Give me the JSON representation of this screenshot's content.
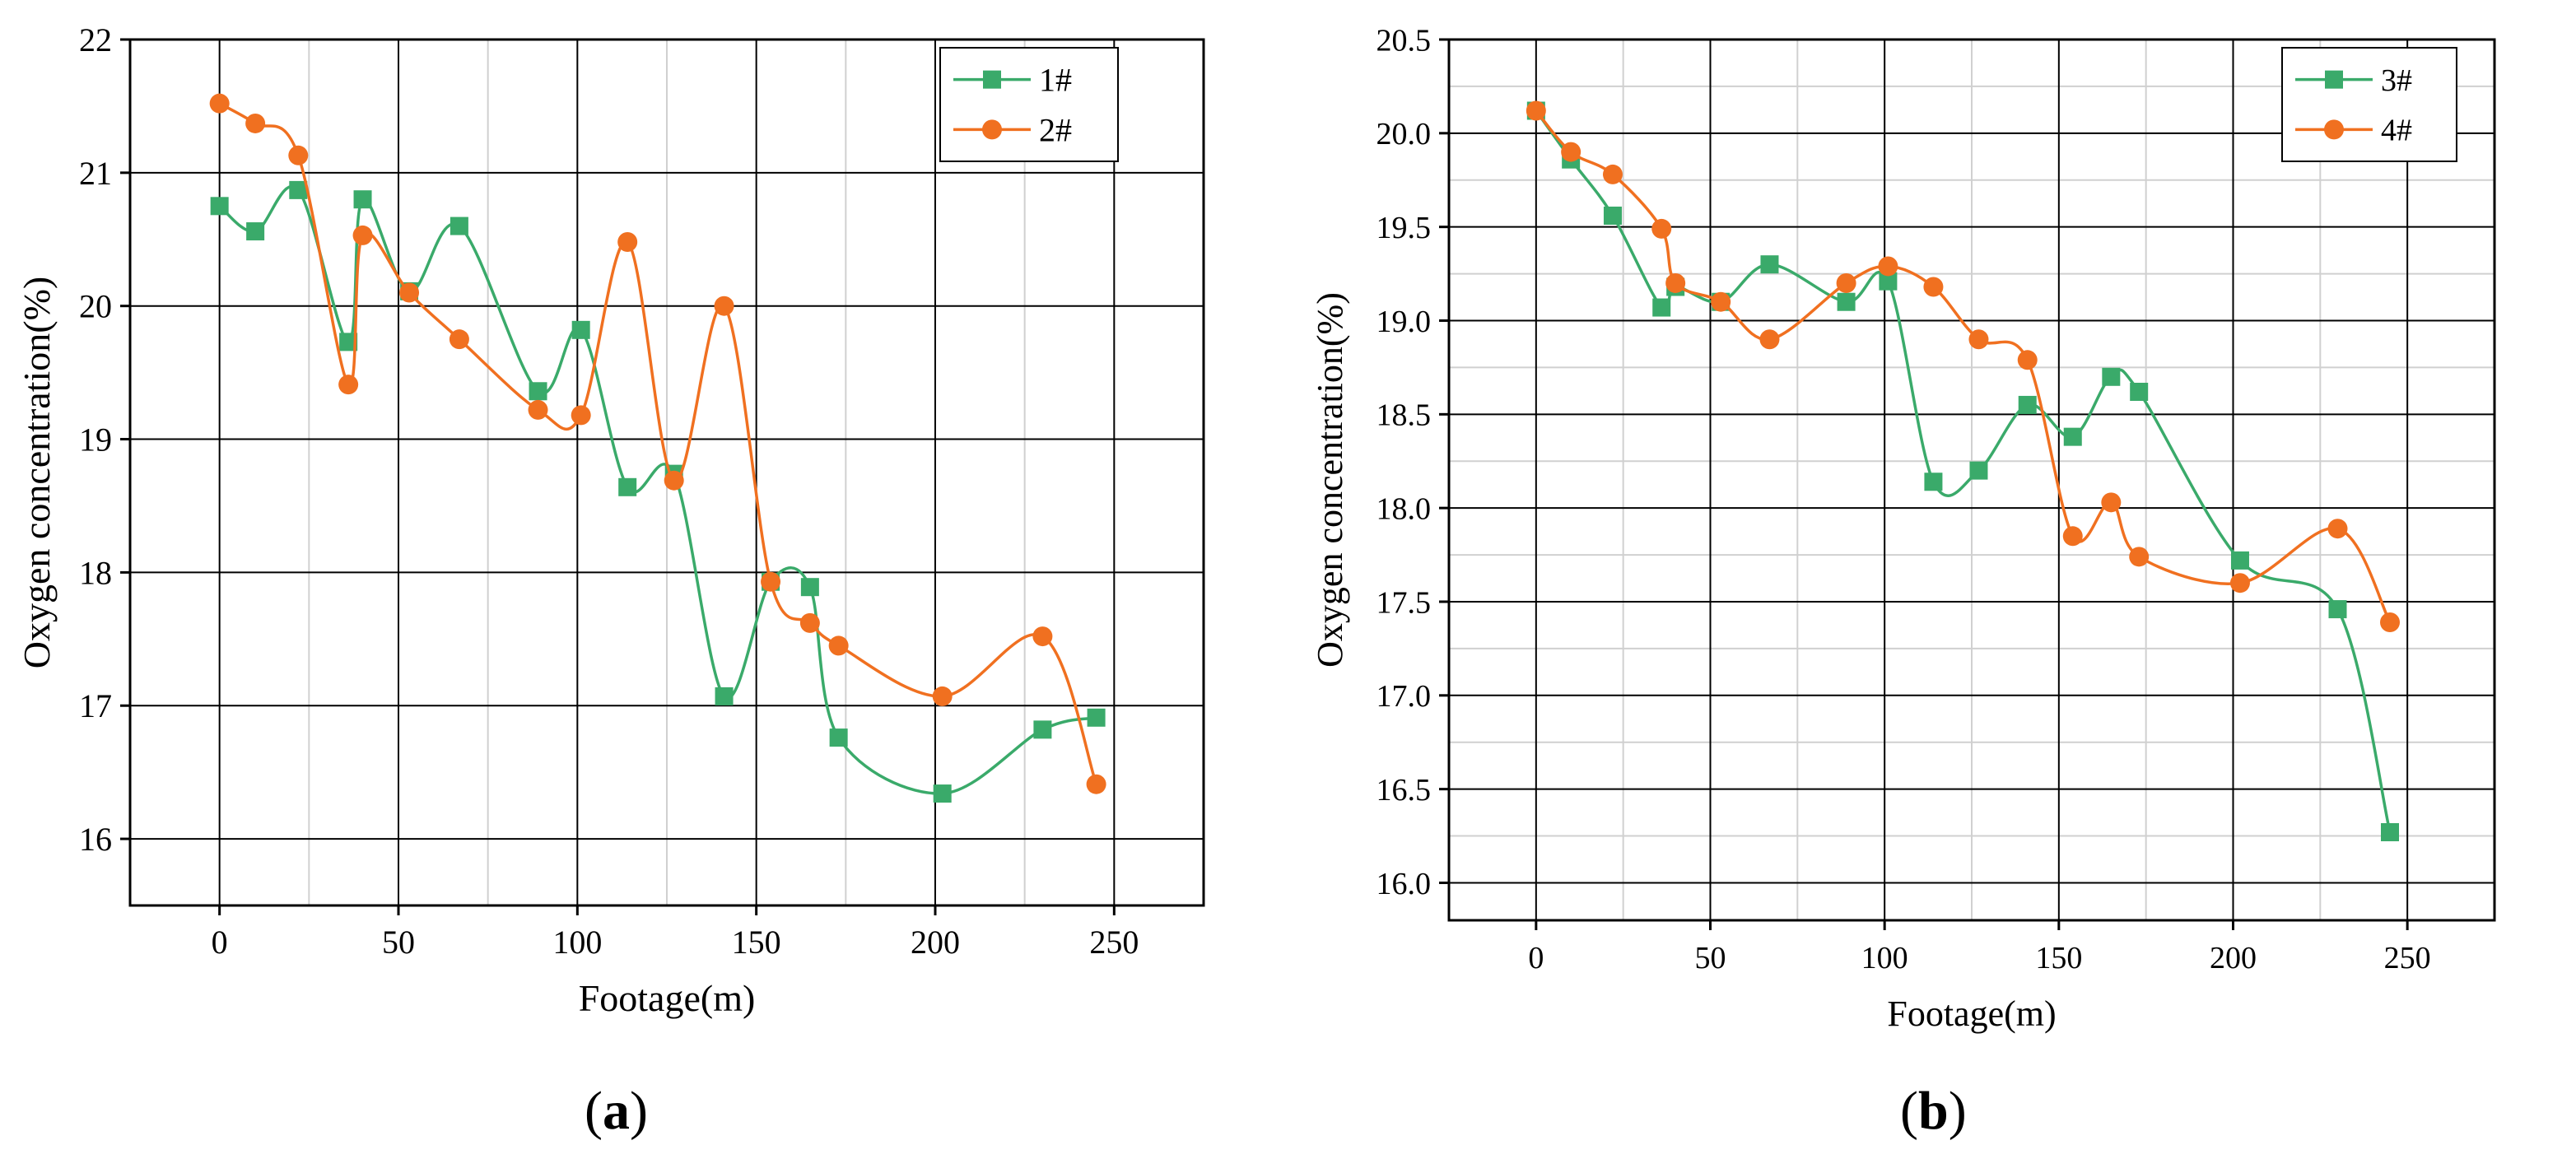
{
  "colors": {
    "green": "#3aaa6a",
    "orange": "#f07020",
    "grid": "#d0d0d0",
    "axis": "#000000"
  },
  "panels": [
    {
      "label_open": "(",
      "label_letter": "a",
      "label_close": ")"
    },
    {
      "label_open": "(",
      "label_letter": "b",
      "label_close": ")"
    }
  ],
  "chart_data": [
    {
      "type": "line",
      "panel": "a",
      "xlabel": "Footage(m)",
      "ylabel": "Oxygen concentration(%)",
      "xlim": [
        -25,
        275
      ],
      "ylim": [
        15.5,
        22
      ],
      "xticks": [
        0,
        50,
        100,
        150,
        200,
        250
      ],
      "yticks": [
        16,
        17,
        18,
        19,
        20,
        21,
        22
      ],
      "xtick_labels": [
        "0",
        "50",
        "100",
        "150",
        "200",
        "250"
      ],
      "ytick_labels": [
        "16",
        "17",
        "18",
        "19",
        "20",
        "21",
        "22"
      ],
      "legend_position": "top-right",
      "series": [
        {
          "name": "1#",
          "color": "#3aaa6a",
          "marker": "square",
          "x": [
            0,
            10,
            22,
            36,
            40,
            53,
            67,
            89,
            101,
            114,
            127,
            141,
            154,
            165,
            173,
            202,
            230,
            245
          ],
          "y": [
            20.75,
            20.56,
            20.87,
            19.73,
            20.8,
            20.11,
            20.6,
            19.36,
            19.82,
            18.64,
            18.74,
            17.07,
            17.93,
            17.89,
            16.76,
            16.34,
            16.82,
            16.91
          ]
        },
        {
          "name": "2#",
          "color": "#f07020",
          "marker": "circle",
          "x": [
            0,
            10,
            22,
            36,
            40,
            53,
            67,
            89,
            101,
            114,
            127,
            141,
            154,
            165,
            173,
            202,
            230,
            245
          ],
          "y": [
            21.52,
            21.37,
            21.13,
            19.41,
            20.53,
            20.1,
            19.75,
            19.22,
            19.18,
            20.48,
            18.69,
            20.0,
            17.93,
            17.62,
            17.45,
            17.07,
            17.52,
            16.41
          ]
        }
      ]
    },
    {
      "type": "line",
      "panel": "b",
      "xlabel": "Footage(m)",
      "ylabel": "Oxygen concentration(%)",
      "xlim": [
        -25,
        275
      ],
      "ylim": [
        15.8,
        20.5
      ],
      "xticks": [
        0,
        50,
        100,
        150,
        200,
        250
      ],
      "yticks": [
        16.0,
        16.5,
        17.0,
        17.5,
        18.0,
        18.5,
        19.0,
        19.5,
        20.0,
        20.5
      ],
      "xtick_labels": [
        "0",
        "50",
        "100",
        "150",
        "200",
        "250"
      ],
      "ytick_labels": [
        "16.0",
        "16.5",
        "17.0",
        "17.5",
        "18.0",
        "18.5",
        "19.0",
        "19.5",
        "20.0",
        "20.5"
      ],
      "legend_position": "top-right",
      "series": [
        {
          "name": "3#",
          "color": "#3aaa6a",
          "marker": "square",
          "x": [
            0,
            10,
            22,
            36,
            40,
            53,
            67,
            89,
            101,
            114,
            127,
            141,
            154,
            165,
            173,
            202,
            230,
            245
          ],
          "y": [
            20.12,
            19.86,
            19.56,
            19.07,
            19.18,
            19.1,
            19.3,
            19.1,
            19.21,
            18.14,
            18.2,
            18.55,
            18.38,
            18.7,
            18.62,
            17.72,
            17.46,
            16.27
          ]
        },
        {
          "name": "4#",
          "color": "#f07020",
          "marker": "circle",
          "x": [
            0,
            10,
            22,
            36,
            40,
            53,
            67,
            89,
            101,
            114,
            127,
            141,
            154,
            165,
            173,
            202,
            230,
            245
          ],
          "y": [
            20.12,
            19.9,
            19.78,
            19.49,
            19.2,
            19.1,
            18.9,
            19.2,
            19.29,
            19.18,
            18.9,
            18.79,
            17.85,
            18.03,
            17.74,
            17.6,
            17.89,
            17.39
          ]
        }
      ]
    }
  ]
}
